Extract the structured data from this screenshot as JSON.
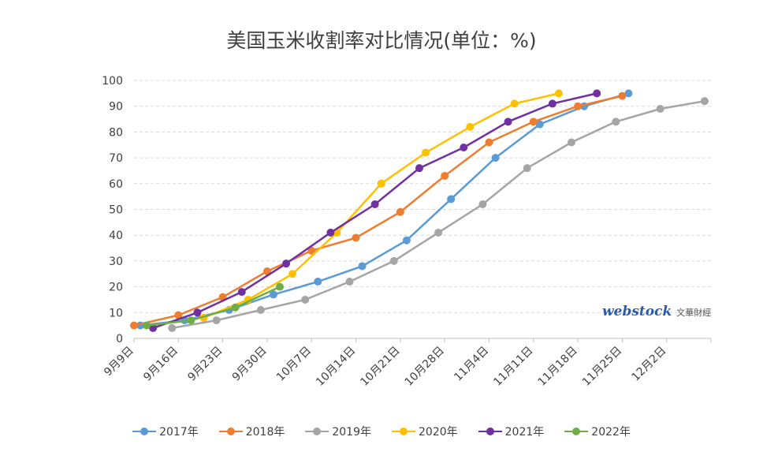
{
  "chart_data": {
    "type": "line",
    "title": "美国玉米收割率对比情况(单位：%)",
    "xlabel": "",
    "ylabel": "",
    "ylim": [
      0,
      100
    ],
    "yticks": [
      0,
      10,
      20,
      30,
      40,
      50,
      60,
      70,
      80,
      90,
      100
    ],
    "x_axis_type": "date",
    "xlim": [
      "09-09",
      "12-09"
    ],
    "x_tick_dates": [
      "09-09",
      "09-16",
      "09-23",
      "09-30",
      "10-07",
      "10-14",
      "10-21",
      "10-28",
      "11-04",
      "11-11",
      "11-18",
      "11-25",
      "12-02"
    ],
    "x_tick_labels": [
      "9月9日",
      "9月16日",
      "9月23日",
      "9月30日",
      "10月7日",
      "10月14日",
      "10月21日",
      "10月28日",
      "11月4日",
      "11月11日",
      "11月18日",
      "11月25日",
      "12月2日"
    ],
    "grid": true,
    "legend_position": "bottom",
    "series": [
      {
        "name": "2017年",
        "color": "#5b9bd5",
        "x": [
          "09-10",
          "09-17",
          "09-24",
          "10-01",
          "10-08",
          "10-15",
          "10-22",
          "10-29",
          "11-05",
          "11-12",
          "11-19",
          "11-26"
        ],
        "y": [
          5,
          7,
          11,
          17,
          22,
          28,
          38,
          54,
          70,
          83,
          90,
          95
        ]
      },
      {
        "name": "2018年",
        "color": "#ed7d31",
        "x": [
          "09-09",
          "09-16",
          "09-23",
          "09-30",
          "10-07",
          "10-14",
          "10-21",
          "10-28",
          "11-04",
          "11-11",
          "11-18",
          "11-25"
        ],
        "y": [
          5,
          9,
          16,
          26,
          34,
          39,
          49,
          63,
          76,
          84,
          90,
          94
        ]
      },
      {
        "name": "2019年",
        "color": "#a5a5a5",
        "x": [
          "09-15",
          "09-22",
          "09-29",
          "10-06",
          "10-13",
          "10-20",
          "10-27",
          "11-03",
          "11-10",
          "11-17",
          "11-24",
          "12-01",
          "12-08"
        ],
        "y": [
          4,
          7,
          11,
          15,
          22,
          30,
          41,
          52,
          66,
          76,
          84,
          89,
          92
        ]
      },
      {
        "name": "2020年",
        "color": "#ffc000",
        "x": [
          "09-20",
          "09-27",
          "10-04",
          "10-11",
          "10-18",
          "10-25",
          "11-01",
          "11-08",
          "11-15"
        ],
        "y": [
          8,
          15,
          25,
          41,
          60,
          72,
          82,
          91,
          95
        ]
      },
      {
        "name": "2021年",
        "color": "#7030a0",
        "x": [
          "09-12",
          "09-19",
          "09-26",
          "10-03",
          "10-10",
          "10-17",
          "10-24",
          "10-31",
          "11-07",
          "11-14",
          "11-21"
        ],
        "y": [
          4,
          10,
          18,
          29,
          41,
          52,
          66,
          74,
          84,
          91,
          95
        ]
      },
      {
        "name": "2022年",
        "color": "#70ad47",
        "x": [
          "09-11",
          "09-18",
          "09-25",
          "10-02"
        ],
        "y": [
          5,
          7,
          12,
          20
        ]
      }
    ]
  },
  "logo": {
    "text": "webstock",
    "subtext": "文華財經"
  }
}
